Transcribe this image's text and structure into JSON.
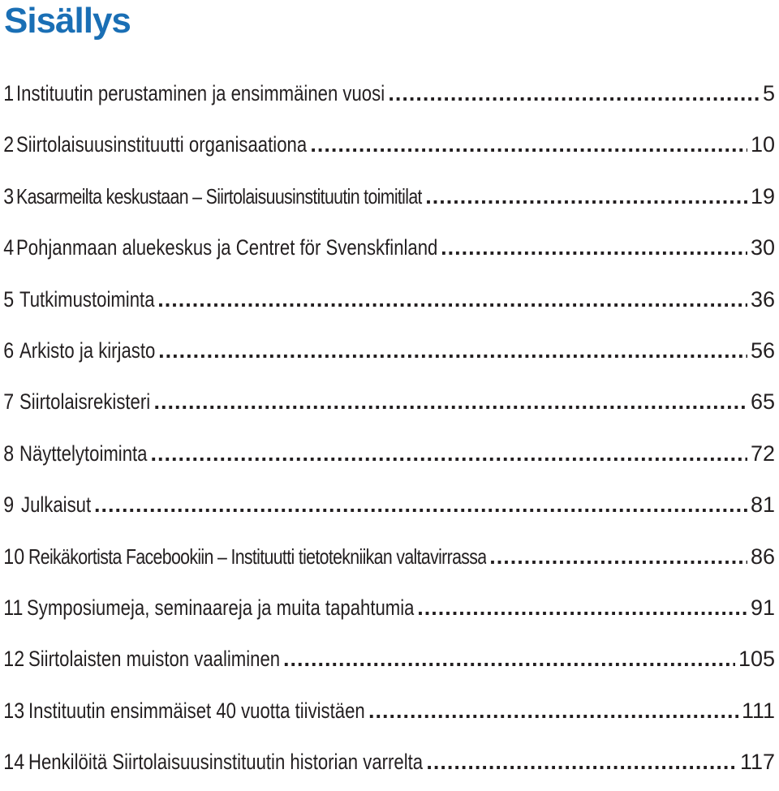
{
  "document": {
    "title": "Sisällys",
    "colors": {
      "title": "#1a6fb5",
      "text": "#231f20"
    },
    "entries": [
      {
        "number": "1",
        "text": "Instituutin perustaminen ja ensimmäinen vuosi",
        "page": "5"
      },
      {
        "number": "2",
        "text": "Siirtolaisuusinstituutti organisaationa",
        "page": "10"
      },
      {
        "number": "3",
        "text": "Kasarmeilta keskustaan – Siirtolaisuusinstituutin toimitilat",
        "page": "19"
      },
      {
        "number": "4",
        "text": "Pohjanmaan aluekeskus ja Centret för Svenskfinland",
        "page": "30"
      },
      {
        "number": "5",
        "text": "Tutkimustoiminta",
        "page": "36"
      },
      {
        "number": "6",
        "text": "Arkisto ja kirjasto",
        "page": "56"
      },
      {
        "number": "7",
        "text": "Siirtolaisrekisteri",
        "page": "65"
      },
      {
        "number": "8",
        "text": "Näyttelytoiminta",
        "page": "72"
      },
      {
        "number": "9",
        "text": "Julkaisut",
        "page": "81"
      },
      {
        "number": "10",
        "text": "Reikäkortista Facebookiin – Instituutti tietotekniikan valtavirrassa",
        "page": "86"
      },
      {
        "number": "11",
        "text": "Symposiumeja, seminaareja ja muita tapahtumia",
        "page": "91"
      },
      {
        "number": "12",
        "text": "Siirtolaisten muiston vaaliminen",
        "page": "105"
      },
      {
        "number": "13",
        "text": "Instituutin ensimmäiset 40 vuotta tiivistäen",
        "page": "111"
      },
      {
        "number": "14",
        "text": "Henkilöitä Siirtolaisuusinstituutin historian varrelta",
        "page": "117"
      }
    ]
  }
}
